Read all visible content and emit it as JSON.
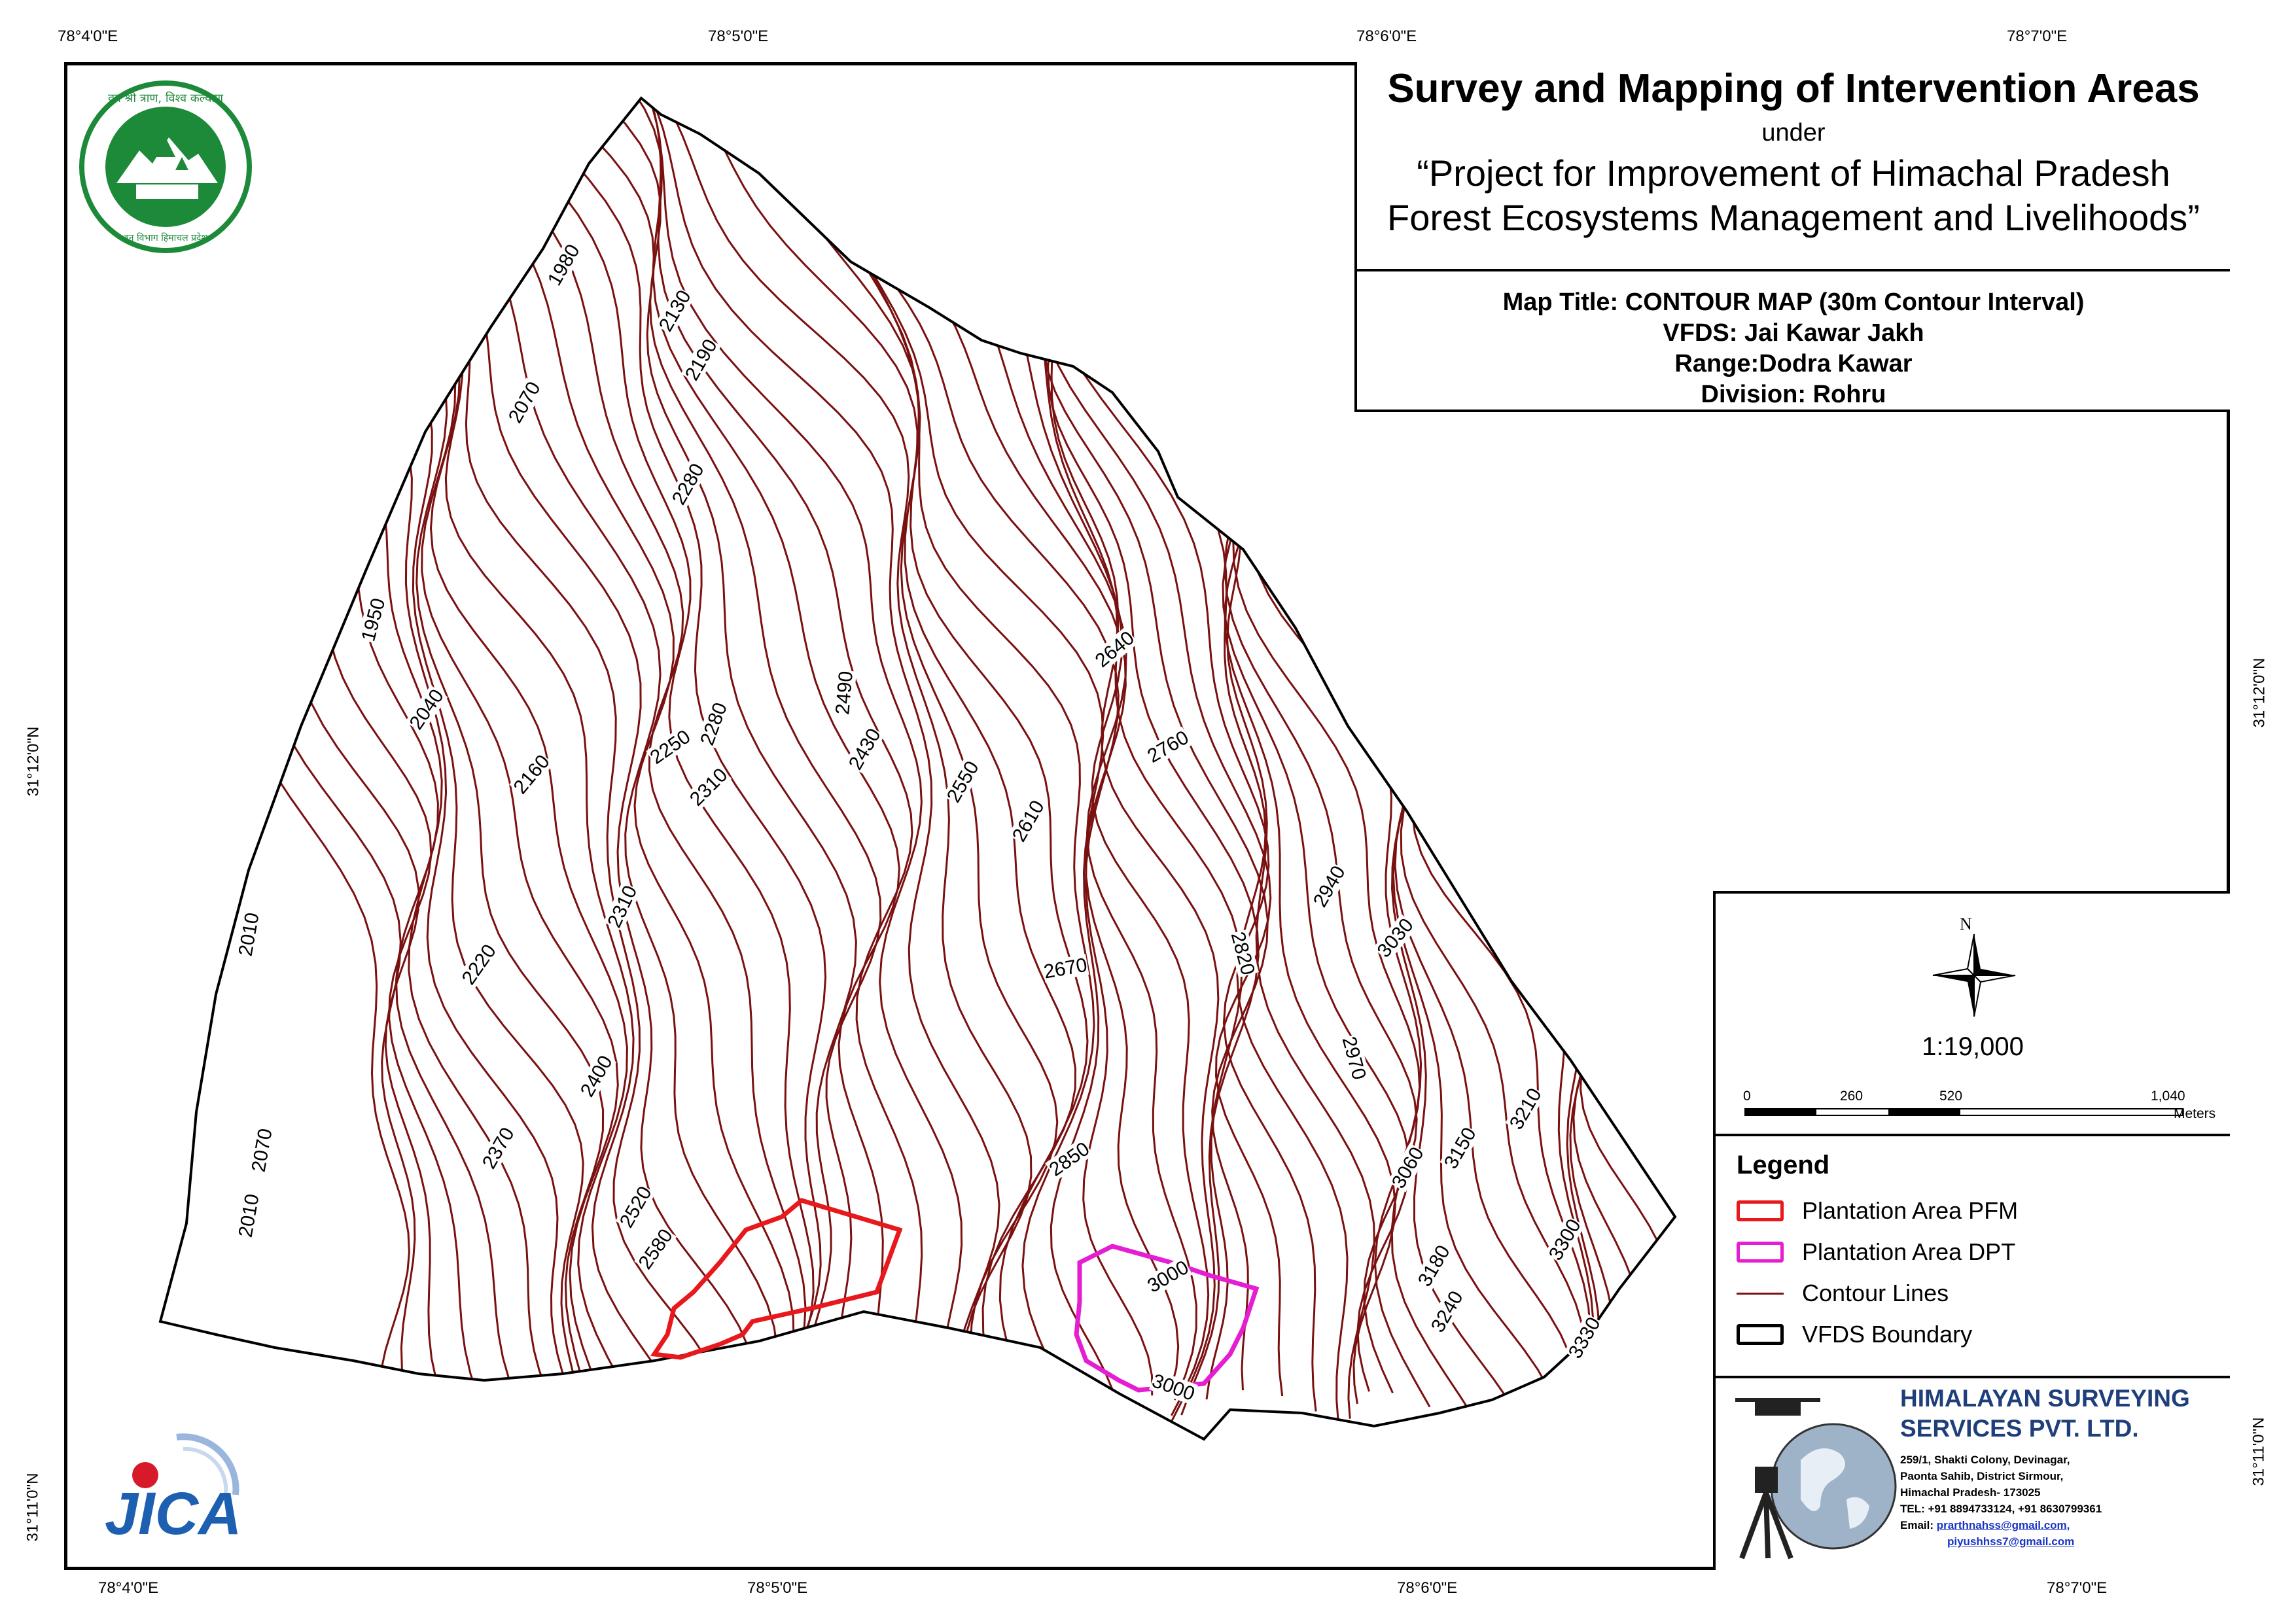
{
  "map": {
    "title": "Survey and Mapping of Intervention Areas",
    "under": "under",
    "project_line1": "“Project for Improvement of Himachal Pradesh",
    "project_line2": "Forest Ecosystems Management and Livelihoods”",
    "map_title": "Map Title: CONTOUR MAP (30m Contour Interval)",
    "vfds": "VFDS: Jai Kawar Jakh",
    "range": "Range:Dodra Kawar",
    "division": "Division: Rohru",
    "scale": "1:19,000",
    "north": "N",
    "scalebar": {
      "ticks": [
        "0",
        "260",
        "520",
        "1,040"
      ],
      "unit": "Meters"
    }
  },
  "graticule": {
    "top": [
      "78°4'0\"E",
      "78°5'0\"E",
      "78°6'0\"E",
      "78°7'0\"E"
    ],
    "bottom": [
      "78°4'0\"E",
      "78°5'0\"E",
      "78°6'0\"E",
      "78°7'0\"E"
    ],
    "left": [
      "31°12'0\"N",
      "31°11'0\"N"
    ],
    "right": [
      "31°12'0\"N",
      "31°11'0\"N"
    ]
  },
  "legend": {
    "title": "Legend",
    "items": [
      {
        "label": "Plantation Area PFM",
        "color": "#e8191c"
      },
      {
        "label": "Plantation Area DPT",
        "color": "#e61ed2"
      },
      {
        "label": "Contour Lines",
        "color": "#7a1010"
      },
      {
        "label": "VFDS Boundary",
        "color": "#000000"
      }
    ]
  },
  "contour_labels": [
    "1980",
    "2130",
    "2190",
    "2070",
    "2280",
    "1950",
    "2040",
    "2250",
    "2280",
    "2160",
    "2310",
    "2010",
    "2220",
    "2310",
    "2400",
    "2370",
    "2070",
    "2010",
    "2520",
    "2580",
    "2490",
    "2430",
    "2550",
    "2610",
    "2640",
    "2760",
    "2670",
    "2850",
    "2820",
    "2940",
    "3030",
    "2970",
    "3060",
    "3150",
    "3210",
    "3180",
    "3240",
    "3300",
    "3330",
    "3000",
    "3000"
  ],
  "company": {
    "name_line1": "HIMALAYAN SURVEYING",
    "name_line2": "SERVICES PVT. LTD.",
    "address": [
      "259/1, Shakti Colony, Devinagar,",
      "Paonta Sahib, District Sirmour,",
      "Himachal Pradesh- 173025"
    ],
    "tel": "TEL: +91 8894733124, +91 8630799361",
    "email_prefix": "Email: ",
    "email1": "prarthnahss@gmail.com,",
    "email2": "piyushhss7@gmail.com"
  },
  "logos": {
    "forest_dept_text": "वन श्री त्राण, विश्व कल्याण",
    "forest_dept_bottom": "वन विभाग हिमाचल प्रदेश",
    "jica": "JICA"
  }
}
